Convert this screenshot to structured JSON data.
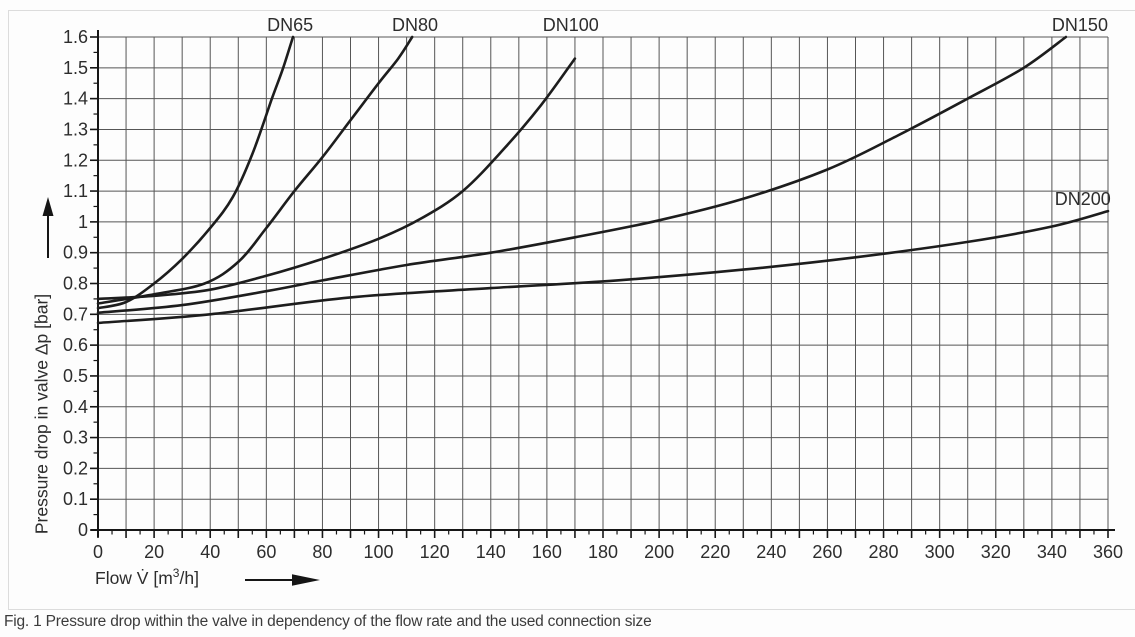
{
  "figure": {
    "caption": "Fig. 1 Pressure drop within the valve in dependency of the flow rate and the used connection size"
  },
  "chart_data": {
    "type": "line",
    "title": "",
    "xlabel": {
      "pre": "Flow V̇ [m",
      "sup": "3",
      "post": "/h]"
    },
    "ylabel": "Pressure drop in valve Δp [bar]",
    "xlim": [
      0,
      360
    ],
    "ylim": [
      0,
      1.6
    ],
    "grid": true,
    "x_grid_step": 10,
    "y_grid_step": 0.1,
    "x_major_tick_step": 10,
    "x_minor_tick_step": 5,
    "y_major_tick_step": 0.1,
    "y_minor_tick_step": 0.05,
    "x_label_step": 20,
    "x_tick_labels": [
      "0",
      "20",
      "40",
      "60",
      "80",
      "100",
      "120",
      "140",
      "160",
      "180",
      "200",
      "220",
      "240",
      "260",
      "280",
      "300",
      "320",
      "340",
      "360"
    ],
    "y_tick_labels": [
      "0",
      "0.1",
      "0.2",
      "0.3",
      "0.4",
      "0.5",
      "0.6",
      "0.7",
      "0.8",
      "0.9",
      "1",
      "1.1",
      "1.2",
      "1.3",
      "1.4",
      "1.5",
      "1.6"
    ],
    "legend_position": "labels-on-curves",
    "series": [
      {
        "name": "DN65",
        "label_x": 68.5,
        "label_y": null,
        "points": [
          [
            0,
            0.72
          ],
          [
            10,
            0.74
          ],
          [
            20,
            0.8
          ],
          [
            30,
            0.88
          ],
          [
            40,
            0.98
          ],
          [
            48,
            1.08
          ],
          [
            55,
            1.22
          ],
          [
            62,
            1.4
          ],
          [
            66,
            1.5
          ],
          [
            69.5,
            1.6
          ]
        ]
      },
      {
        "name": "DN80",
        "label_x": 113,
        "label_y": null,
        "points": [
          [
            0,
            0.735
          ],
          [
            20,
            0.765
          ],
          [
            38,
            0.8
          ],
          [
            50,
            0.87
          ],
          [
            60,
            0.98
          ],
          [
            70,
            1.1
          ],
          [
            80,
            1.21
          ],
          [
            90,
            1.33
          ],
          [
            100,
            1.45
          ],
          [
            107,
            1.53
          ],
          [
            112,
            1.6
          ]
        ]
      },
      {
        "name": "DN100",
        "label_x": 168.5,
        "label_y": null,
        "points": [
          [
            0,
            0.75
          ],
          [
            20,
            0.76
          ],
          [
            40,
            0.78
          ],
          [
            60,
            0.825
          ],
          [
            80,
            0.88
          ],
          [
            100,
            0.945
          ],
          [
            115,
            1.01
          ],
          [
            130,
            1.1
          ],
          [
            145,
            1.24
          ],
          [
            158,
            1.38
          ],
          [
            170,
            1.53
          ]
        ]
      },
      {
        "name": "DN150",
        "label_x": 350,
        "label_y": null,
        "points": [
          [
            0,
            0.705
          ],
          [
            30,
            0.73
          ],
          [
            60,
            0.775
          ],
          [
            80,
            0.81
          ],
          [
            110,
            0.86
          ],
          [
            140,
            0.9
          ],
          [
            170,
            0.95
          ],
          [
            200,
            1.005
          ],
          [
            230,
            1.075
          ],
          [
            260,
            1.17
          ],
          [
            285,
            1.28
          ],
          [
            310,
            1.4
          ],
          [
            330,
            1.5
          ],
          [
            345,
            1.6
          ]
        ]
      },
      {
        "name": "DN200",
        "label_x": 351,
        "label_y": 1.075,
        "points": [
          [
            0,
            0.672
          ],
          [
            40,
            0.7
          ],
          [
            90,
            0.755
          ],
          [
            140,
            0.785
          ],
          [
            185,
            0.81
          ],
          [
            230,
            0.845
          ],
          [
            270,
            0.885
          ],
          [
            310,
            0.935
          ],
          [
            340,
            0.985
          ],
          [
            360,
            1.035
          ]
        ]
      }
    ],
    "colors": {
      "curve": "#1d1d1d",
      "grid": "#565656",
      "axis": "#161616",
      "text": "#2d2d2d",
      "caption": "#3b3b3b",
      "border": "#dcdcdc"
    }
  }
}
